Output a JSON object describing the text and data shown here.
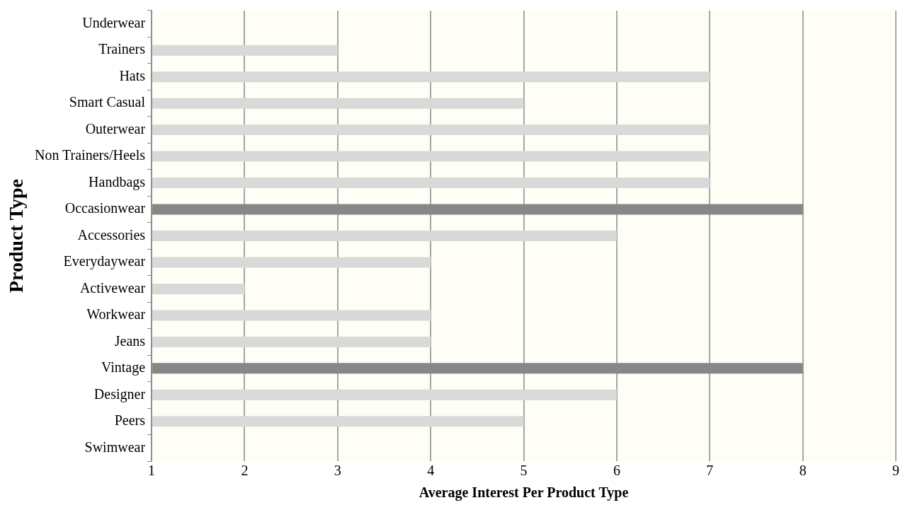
{
  "chart_data": {
    "type": "bar",
    "orientation": "horizontal",
    "xlabel": "Average Interest Per Product Type",
    "ylabel": "Product Type",
    "categories": [
      "Underwear",
      "Trainers",
      "Hats",
      "Smart Casual",
      "Outerwear",
      "Non Trainers/Heels",
      "Handbags",
      "Occasionwear",
      "Accessories",
      "Everydaywear",
      "Activewear",
      "Workwear",
      "Jeans",
      "Vintage",
      "Designer",
      "Peers",
      "Swimwear"
    ],
    "values": [
      1,
      3,
      7,
      5,
      7,
      7,
      7,
      8,
      6,
      4,
      2,
      4,
      4,
      8,
      6,
      5,
      1
    ],
    "colors": [
      "#d9d9d9",
      "#d9d9d9",
      "#d9d9d9",
      "#d9d9d9",
      "#d9d9d9",
      "#d9d9d9",
      "#d9d9d9",
      "#878787",
      "#d9d9d9",
      "#d9d9d9",
      "#d9d9d9",
      "#d9d9d9",
      "#d9d9d9",
      "#878787",
      "#d9d9d9",
      "#d9d9d9",
      "#d9d9d9"
    ],
    "xlim": [
      1,
      9
    ],
    "xticks": [
      1,
      2,
      3,
      4,
      5,
      6,
      7,
      8,
      9
    ],
    "grid": "x"
  }
}
